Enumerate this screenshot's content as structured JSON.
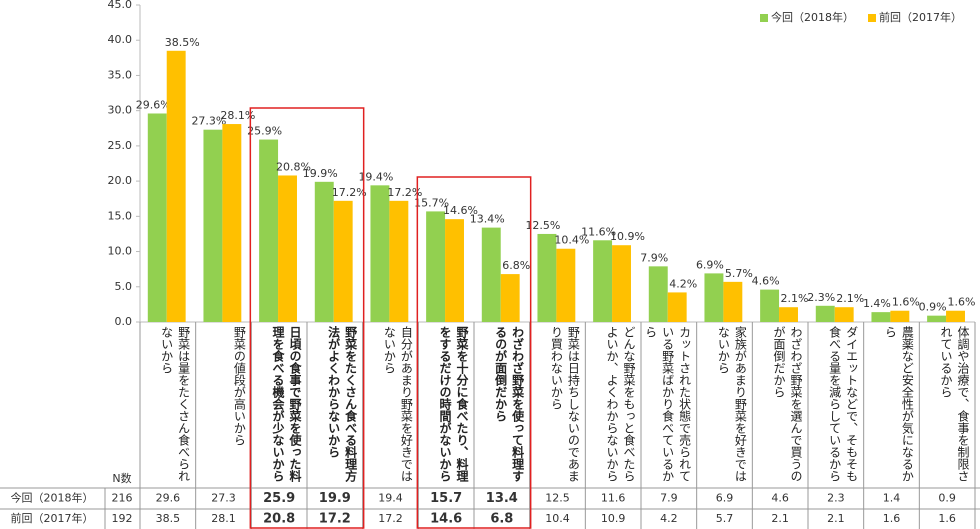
{
  "chart_data": {
    "type": "bar",
    "categories": [
      "野菜は量をたくさん食べられないから",
      "野菜の値段が高いから",
      "日頃の食事で野菜を使った料理を食べる機会が少ないから",
      "野菜をたくさん食べる料理方法がよくわからないから",
      "自分があまり野菜を好きではないから",
      "野菜を十分に食べたり、料理をするだけの時間がないから",
      "わざわざ野菜を使って料理するのが面倒だから",
      "野菜は日持ちしないのであまり買わないから",
      "どんな野菜をもっと食べたらよいか、よくわからないから",
      "カットされた状態で売られている野菜ばかり食べているから",
      "家族があまり野菜を好きではないから",
      "わざわざ野菜を選んで買うのが面倒だから",
      "ダイエットなどで、そもそも食べる量を減らしているから",
      "農薬など安全性が気になるから",
      "体調や治療で、食事を制限されているから"
    ],
    "series": [
      {
        "name": "今回（2018年）",
        "color": "#92d050",
        "n": 216,
        "values": [
          29.6,
          27.3,
          25.9,
          19.9,
          19.4,
          15.7,
          13.4,
          12.5,
          11.6,
          7.9,
          6.9,
          4.6,
          2.3,
          1.4,
          0.9
        ],
        "value_labels": [
          "29.6%",
          "27.3%",
          "25.9%",
          "19.9%",
          "19.4%",
          "15.7%",
          "13.4%",
          "12.5%",
          "11.6%",
          "7.9%",
          "6.9%",
          "4.6%",
          "2.3%",
          "1.4%",
          "0.9%"
        ]
      },
      {
        "name": "前回（2017年）",
        "color": "#ffc000",
        "n": 192,
        "values": [
          38.5,
          28.1,
          20.8,
          17.2,
          17.2,
          14.6,
          6.8,
          10.4,
          10.9,
          4.2,
          5.7,
          2.1,
          2.1,
          1.6,
          1.6
        ],
        "value_labels": [
          "38.5%",
          "28.1%",
          "20.8%",
          "17.2%",
          "17.2%",
          "14.6%",
          "6.8%",
          "10.4%",
          "10.9%",
          "4.2%",
          "5.7%",
          "2.1%",
          "2.1%",
          "1.6%",
          "1.6%"
        ]
      }
    ],
    "ylim": [
      0,
      45
    ],
    "yticks": [
      {
        "value": 0,
        "label": "0.0"
      },
      {
        "value": 5,
        "label": "5.0"
      },
      {
        "value": 10,
        "label": "10.0"
      },
      {
        "value": 15,
        "label": "15.0"
      },
      {
        "value": 20,
        "label": "20.0"
      },
      {
        "value": 25,
        "label": "25.0"
      },
      {
        "value": 30,
        "label": "30.0"
      },
      {
        "value": 35,
        "label": "35.0"
      },
      {
        "value": 40,
        "label": "40.0"
      },
      {
        "value": 45,
        "label": "45.0"
      }
    ],
    "grid": false,
    "legend": "top-right",
    "table_n_header": "N数"
  }
}
